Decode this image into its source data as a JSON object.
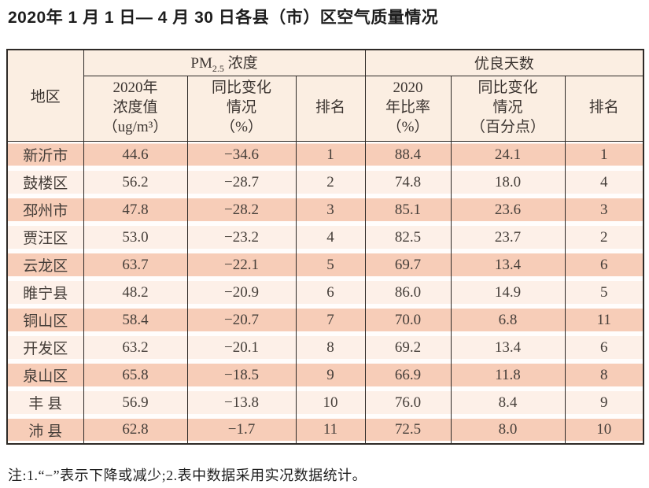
{
  "title": "2020年 1 月 1 日— 4 月 30 日各县（市）区空气质量情况",
  "footnote": "注:1.“−”表示下降或减少;2.表中数据采用实况数据统计。",
  "colors": {
    "border": "#2e2a27",
    "header_bg": "#fbeee2",
    "row_salmon": "#f7cdb8",
    "row_cream": "#fdf0e8",
    "text_ink": "#453e39"
  },
  "table": {
    "header": {
      "region": "地区",
      "pm_base": "PM",
      "pm_sub": "2.5",
      "pm_rest": " 浓度",
      "days_group": "优良天数",
      "pm_cols": {
        "value": "2020年\n浓度值\n（ug/m³）",
        "change": "同比变化\n情况\n（%）",
        "rank": "排名"
      },
      "days_cols": {
        "rate": "2020\n年比率\n（%）",
        "change": "同比变化\n情况\n（百分点）",
        "rank": "排名"
      }
    },
    "rows": [
      {
        "region": "新沂市",
        "pm_value": "44.6",
        "pm_change": "−34.6",
        "pm_rank": "1",
        "days_rate": "88.4",
        "days_change": "24.1",
        "days_rank": "1"
      },
      {
        "region": "鼓楼区",
        "pm_value": "56.2",
        "pm_change": "−28.7",
        "pm_rank": "2",
        "days_rate": "74.8",
        "days_change": "18.0",
        "days_rank": "4"
      },
      {
        "region": "邳州市",
        "pm_value": "47.8",
        "pm_change": "−28.2",
        "pm_rank": "3",
        "days_rate": "85.1",
        "days_change": "23.6",
        "days_rank": "3"
      },
      {
        "region": "贾汪区",
        "pm_value": "53.0",
        "pm_change": "−23.2",
        "pm_rank": "4",
        "days_rate": "82.5",
        "days_change": "23.7",
        "days_rank": "2"
      },
      {
        "region": "云龙区",
        "pm_value": "63.7",
        "pm_change": "−22.1",
        "pm_rank": "5",
        "days_rate": "69.7",
        "days_change": "13.4",
        "days_rank": "6"
      },
      {
        "region": "睢宁县",
        "pm_value": "48.2",
        "pm_change": "−20.9",
        "pm_rank": "6",
        "days_rate": "86.0",
        "days_change": "14.9",
        "days_rank": "5"
      },
      {
        "region": "铜山区",
        "pm_value": "58.4",
        "pm_change": "−20.7",
        "pm_rank": "7",
        "days_rate": "70.0",
        "days_change": "6.8",
        "days_rank": "11"
      },
      {
        "region": "开发区",
        "pm_value": "63.2",
        "pm_change": "−20.1",
        "pm_rank": "8",
        "days_rate": "69.2",
        "days_change": "13.4",
        "days_rank": "6"
      },
      {
        "region": "泉山区",
        "pm_value": "65.8",
        "pm_change": "−18.5",
        "pm_rank": "9",
        "days_rate": "66.9",
        "days_change": "11.8",
        "days_rank": "8"
      },
      {
        "region": "丰 县",
        "pm_value": "56.9",
        "pm_change": "−13.8",
        "pm_rank": "10",
        "days_rate": "76.0",
        "days_change": "8.4",
        "days_rank": "9"
      },
      {
        "region": "沛 县",
        "pm_value": "62.8",
        "pm_change": "−1.7",
        "pm_rank": "11",
        "days_rate": "72.5",
        "days_change": "8.0",
        "days_rank": "10"
      }
    ]
  }
}
